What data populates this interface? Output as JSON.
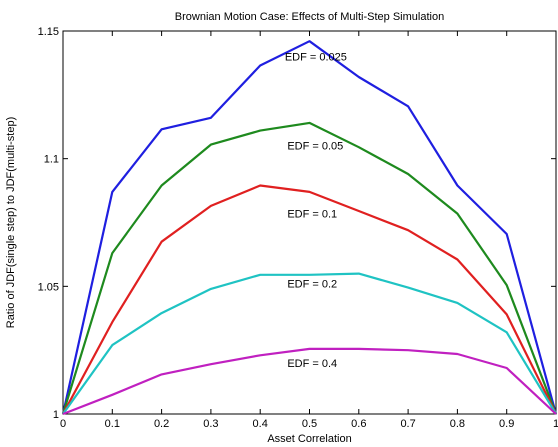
{
  "chart_data": {
    "type": "line",
    "title": "Brownian Motion Case:  Effects of Multi-Step Simulation",
    "xlabel": "Asset Correlation",
    "ylabel": "Ratio of JDF(single step) to JDF(multi-step)",
    "xlim": [
      0,
      1
    ],
    "ylim": [
      1,
      1.15
    ],
    "x_ticks": [
      "0",
      "0.1",
      "0.2",
      "0.3",
      "0.4",
      "0.5",
      "0.6",
      "0.7",
      "0.8",
      "0.9",
      "1"
    ],
    "y_ticks": [
      "1",
      "1.05",
      "1.1",
      "1.15"
    ],
    "grid": false,
    "x": [
      0,
      0.1,
      0.2,
      0.3,
      0.4,
      0.5,
      0.6,
      0.7,
      0.8,
      0.9,
      1.0
    ],
    "series": [
      {
        "name": "EDF = 0.025",
        "color": "#1f1fe0",
        "values": [
          1.0,
          1.087,
          1.1115,
          1.116,
          1.1365,
          1.146,
          1.132,
          1.1205,
          1.0895,
          1.0705,
          1.0
        ]
      },
      {
        "name": "EDF = 0.05",
        "color": "#1e8a1e",
        "values": [
          1.0,
          1.063,
          1.0895,
          1.1055,
          1.111,
          1.114,
          1.1045,
          1.094,
          1.0785,
          1.0505,
          1.0
        ]
      },
      {
        "name": "EDF = 0.1",
        "color": "#e02020",
        "values": [
          1.0,
          1.036,
          1.0675,
          1.0815,
          1.0895,
          1.087,
          1.0795,
          1.072,
          1.0605,
          1.039,
          1.0
        ]
      },
      {
        "name": "EDF = 0.2",
        "color": "#1fc3c3",
        "values": [
          1.0,
          1.027,
          1.0395,
          1.049,
          1.0545,
          1.0545,
          1.055,
          1.0495,
          1.0435,
          1.032,
          1.0
        ]
      },
      {
        "name": "EDF = 0.4",
        "color": "#c020c0",
        "values": [
          1.0,
          1.0075,
          1.0155,
          1.0195,
          1.023,
          1.0255,
          1.0255,
          1.025,
          1.0235,
          1.018,
          1.0
        ]
      }
    ],
    "annotations": [
      {
        "text": "EDF = 0.025",
        "x": 0.45,
        "y": 1.1385
      },
      {
        "text": "EDF = 0.05",
        "x": 0.455,
        "y": 1.1035
      },
      {
        "text": "EDF = 0.1",
        "x": 0.455,
        "y": 1.077
      },
      {
        "text": "EDF = 0.2",
        "x": 0.455,
        "y": 1.0495
      },
      {
        "text": "EDF = 0.4",
        "x": 0.455,
        "y": 1.0185
      }
    ]
  }
}
